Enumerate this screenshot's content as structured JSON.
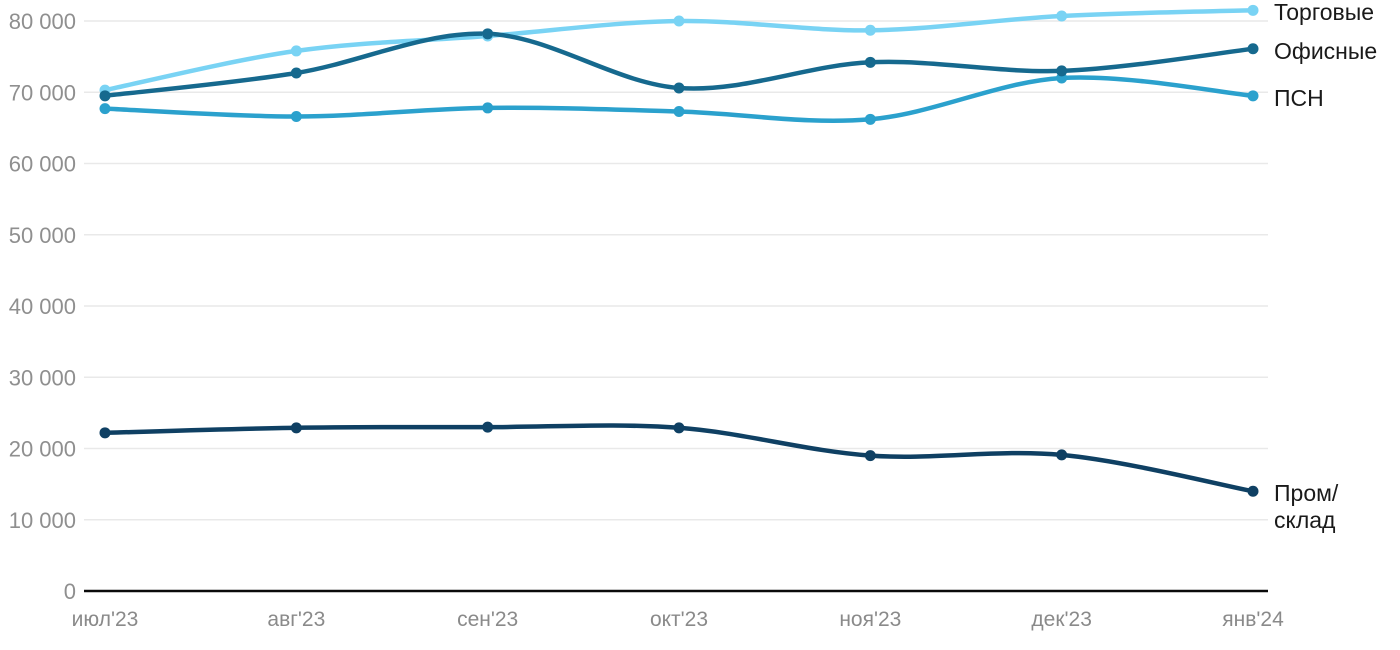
{
  "chart_data": {
    "type": "line",
    "title": "",
    "xlabel": "",
    "ylabel": "",
    "categories": [
      "июл'23",
      "авг'23",
      "сен'23",
      "окт'23",
      "ноя'23",
      "дек'23",
      "янв'24"
    ],
    "series": [
      {
        "name": "Торговые",
        "color": "#79d3f4",
        "values": [
          70300,
          75800,
          77900,
          80000,
          78700,
          80700,
          81500
        ],
        "label_lines": [
          "Торговые"
        ]
      },
      {
        "name": "ПСН",
        "color": "#2ba1cd",
        "values": [
          67700,
          66600,
          67800,
          67300,
          66200,
          72000,
          69500
        ],
        "label_lines": [
          "ПСН"
        ]
      },
      {
        "name": "Офисные",
        "color": "#16698e",
        "values": [
          69500,
          72700,
          78200,
          70600,
          74200,
          73000,
          76100
        ],
        "label_lines": [
          "Офисные"
        ]
      },
      {
        "name": "Пром/склад",
        "color": "#0f4063",
        "values": [
          22200,
          22900,
          23000,
          22900,
          19000,
          19100,
          14000
        ],
        "label_lines": [
          "Пром/",
          "склад"
        ]
      }
    ],
    "yticks": {
      "values": [
        0,
        10000,
        20000,
        30000,
        40000,
        50000,
        60000,
        70000,
        80000
      ],
      "labels": [
        "0",
        "10 000",
        "20 000",
        "30 000",
        "40 000",
        "50 000",
        "60 000",
        "70 000",
        "80 000"
      ]
    },
    "ylim": [
      0,
      81500
    ],
    "grid": true,
    "legend_position": "right-of-line-ends"
  },
  "colors": {
    "background": "#ffffff",
    "grid": "#e9e9e9",
    "axis": "#0a0a0a",
    "ytick_text": "#8f8f8f",
    "xtick_text": "#8a8a8a",
    "legend_text": "#1a1a1a"
  }
}
